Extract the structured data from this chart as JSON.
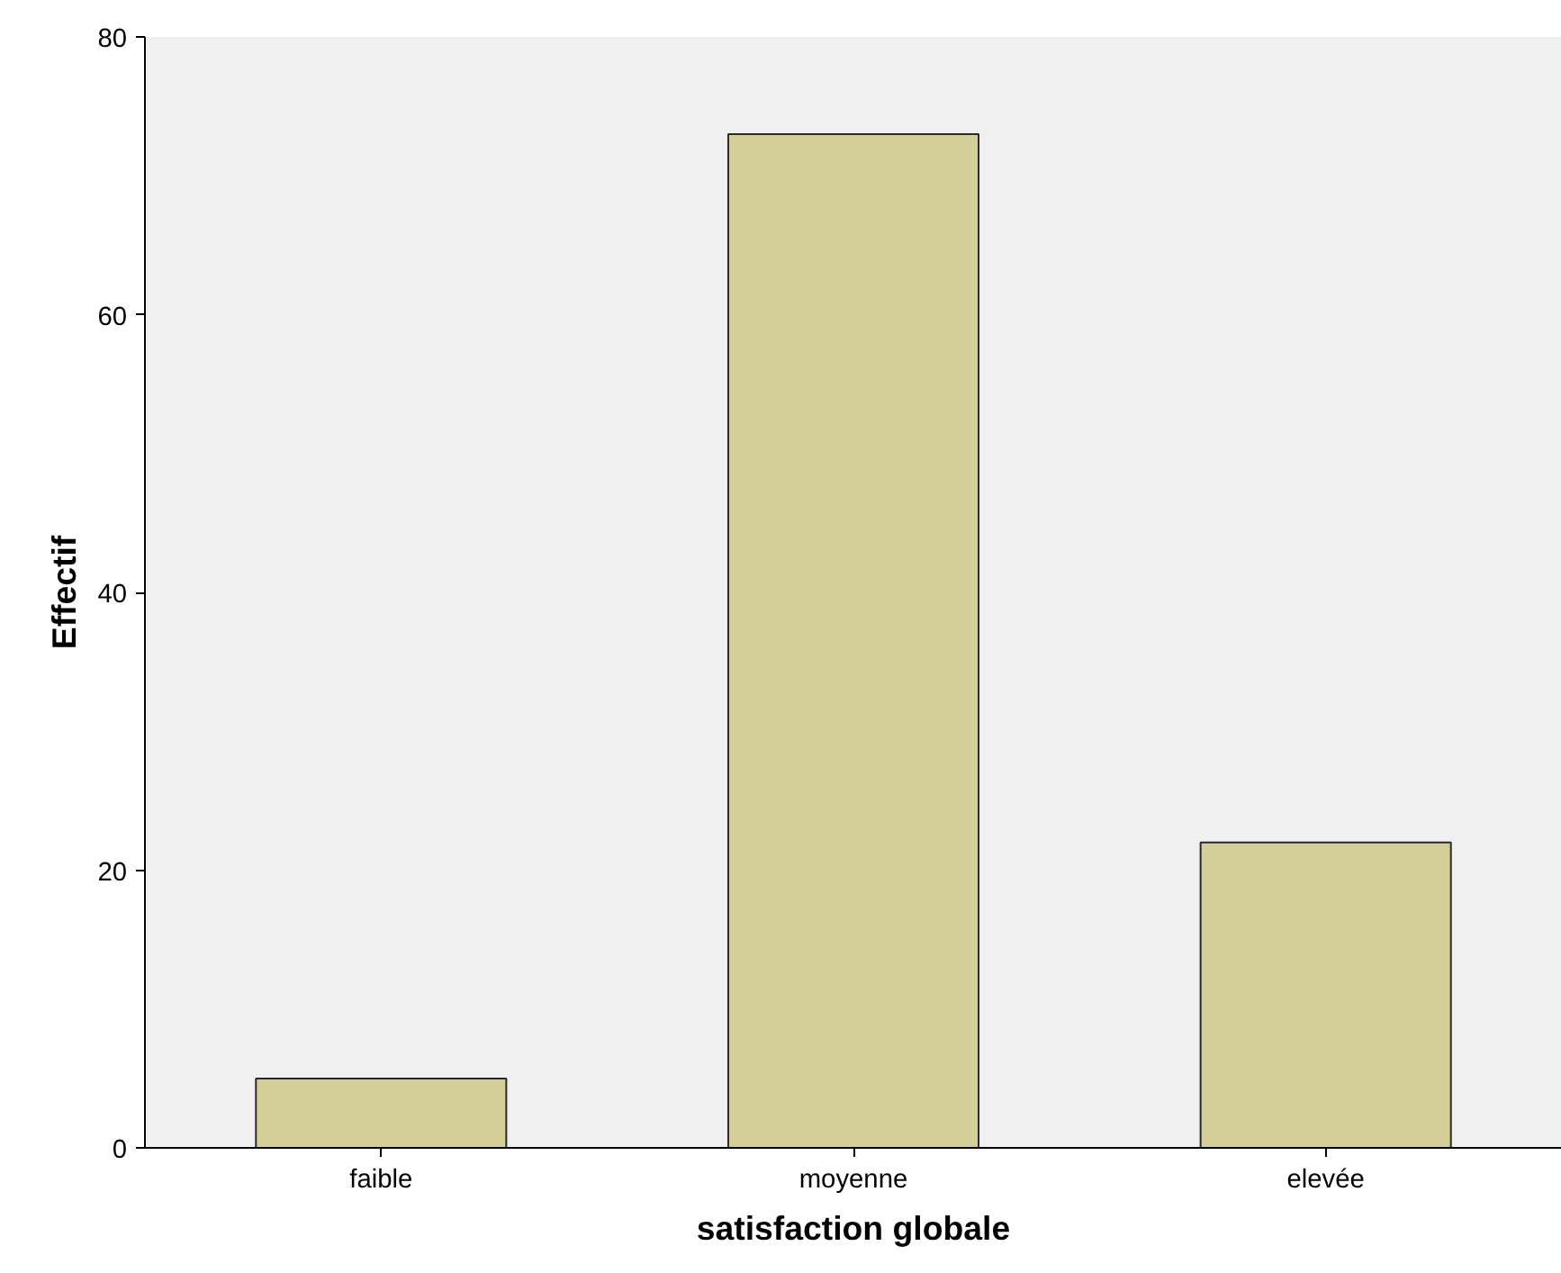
{
  "chart_data": {
    "type": "bar",
    "xlabel": "satisfaction globale",
    "ylabel": "Effectif",
    "categories": [
      "faible",
      "moyenne",
      "elevée"
    ],
    "values": [
      5,
      73,
      22
    ],
    "color": "#d3ce97",
    "ylim": [
      0,
      80
    ],
    "yticks": [
      0,
      20,
      40,
      60,
      80
    ],
    "grid": false
  }
}
